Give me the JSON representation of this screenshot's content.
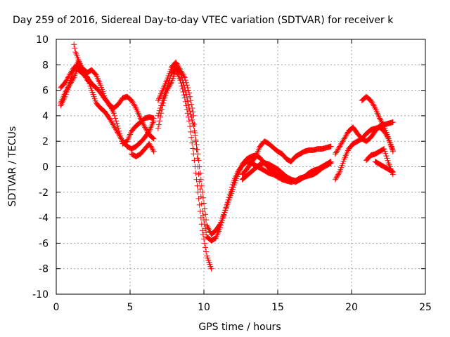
{
  "chart_data": {
    "type": "scatter",
    "title": "Day 259 of 2016, Sidereal Day-to-day VTEC variation (SDTVAR) for receiver k",
    "xlabel": "GPS time / hours",
    "ylabel": "SDTVAR / TECUs",
    "xlim": [
      0,
      25
    ],
    "ylim": [
      -10,
      10
    ],
    "x_ticks": [
      "0",
      "5",
      "10",
      "15",
      "20",
      "25"
    ],
    "y_ticks": [
      "-10",
      "-8",
      "-6",
      "-4",
      "-2",
      "0",
      "2",
      "4",
      "6",
      "8",
      "10"
    ],
    "grid": true,
    "legend": "none",
    "marker": "+",
    "color": "#ff0000",
    "series": [
      {
        "x": [
          0.3,
          0.6,
          0.9,
          1.2,
          1.5,
          1.8,
          2.1,
          2.4,
          2.7,
          3.0,
          3.3,
          3.6,
          3.9,
          4.2,
          4.5,
          4.8,
          5.1,
          5.4,
          5.7,
          6.0,
          6.3,
          6.6
        ],
        "y": [
          6.2,
          6.6,
          7.2,
          7.8,
          7.6,
          7.3,
          7.0,
          6.5,
          6.2,
          5.8,
          5.3,
          4.9,
          4.2,
          3.0,
          1.8,
          2.0,
          2.8,
          3.2,
          3.5,
          3.8,
          3.9,
          3.8
        ]
      },
      {
        "x": [
          0.3,
          0.6,
          0.9,
          1.2,
          1.5,
          1.8,
          2.1,
          2.4,
          2.7,
          3.0,
          3.3,
          3.6,
          3.9,
          4.2,
          4.5,
          4.8,
          5.1,
          5.4,
          5.7,
          6.0,
          6.3,
          6.6
        ],
        "y": [
          5.0,
          5.8,
          6.4,
          7.0,
          7.9,
          7.7,
          7.4,
          7.6,
          7.2,
          6.4,
          5.4,
          4.8,
          4.6,
          4.9,
          5.4,
          5.5,
          5.2,
          4.6,
          3.8,
          3.1,
          2.5,
          2.2
        ]
      },
      {
        "x": [
          0.3,
          0.6,
          0.9,
          1.2,
          1.5,
          1.8,
          2.1,
          2.4,
          2.7,
          3.0,
          3.3,
          3.6,
          3.9,
          4.2,
          4.5,
          4.8,
          5.1,
          5.4,
          5.7,
          6.0,
          6.3,
          6.6
        ],
        "y": [
          4.8,
          5.5,
          6.6,
          7.6,
          8.3,
          7.6,
          7.0,
          6.0,
          5.0,
          4.6,
          4.3,
          3.8,
          3.2,
          2.6,
          2.0,
          1.6,
          1.4,
          1.6,
          1.9,
          2.3,
          2.8,
          3.6
        ]
      },
      {
        "x": [
          1.2,
          1.3,
          1.5,
          1.7,
          1.9,
          2.1,
          2.3
        ],
        "y": [
          9.6,
          9.0,
          8.4,
          7.8,
          7.2,
          6.8,
          6.6
        ]
      },
      {
        "x": [
          5.1,
          5.4,
          5.7,
          6.0,
          6.3,
          6.6
        ],
        "y": [
          1.0,
          0.8,
          1.0,
          1.4,
          1.8,
          1.2
        ]
      },
      {
        "x": [
          6.9,
          7.2,
          7.5,
          7.8,
          8.1,
          8.4,
          8.7,
          9.0,
          9.3,
          9.6,
          9.9,
          10.2,
          10.5,
          10.8,
          11.1,
          11.4,
          11.7,
          12.0,
          12.3,
          12.6,
          12.9,
          13.2,
          13.5,
          13.8,
          14.1,
          14.4,
          14.7,
          15.0,
          15.3,
          15.6,
          15.9,
          16.2,
          16.5,
          16.8,
          17.1,
          17.4,
          17.7,
          18.0,
          18.3,
          18.6
        ],
        "y": [
          4.0,
          5.2,
          6.2,
          7.3,
          7.8,
          7.4,
          6.2,
          4.6,
          3.2,
          1.0,
          -2.0,
          -4.6,
          -5.3,
          -5.0,
          -4.5,
          -3.6,
          -2.6,
          -1.6,
          -0.6,
          0.2,
          0.6,
          0.8,
          0.9,
          0.7,
          0.3,
          -0.1,
          -0.4,
          -0.6,
          -0.7,
          -0.9,
          -1.0,
          -1.1,
          -0.9,
          -0.8,
          -0.5,
          -0.3,
          -0.2,
          -0.1,
          0.1,
          0.3
        ]
      },
      {
        "x": [
          6.9,
          7.2,
          7.5,
          7.8,
          8.1,
          8.4,
          8.7,
          9.0,
          9.3,
          9.6,
          9.9,
          10.2,
          10.5,
          10.8,
          11.1,
          11.4,
          11.7,
          12.0,
          12.3,
          12.6,
          12.9,
          13.2,
          13.5,
          13.8,
          14.1,
          14.4,
          14.7,
          15.0,
          15.3,
          15.6,
          15.9,
          16.2,
          16.5,
          16.8,
          17.1,
          17.4,
          17.7,
          18.0,
          18.3,
          18.6
        ],
        "y": [
          5.2,
          6.0,
          6.8,
          7.8,
          8.2,
          7.6,
          7.0,
          5.8,
          4.0,
          0.0,
          -3.5,
          -5.5,
          -5.8,
          -5.6,
          -4.8,
          -3.6,
          -2.4,
          -1.2,
          -0.4,
          0.1,
          0.4,
          0.3,
          0.1,
          -0.1,
          -0.3,
          -0.5,
          -0.6,
          -0.8,
          -1.0,
          -1.1,
          -1.2,
          -1.1,
          -1.0,
          -0.8,
          -0.6,
          -0.4,
          -0.2,
          0.0,
          0.2,
          0.4
        ]
      },
      {
        "x": [
          6.9,
          7.2,
          7.5,
          7.8,
          8.1,
          8.4,
          8.7,
          9.0,
          9.3,
          9.6,
          9.9,
          10.2,
          10.5
        ],
        "y": [
          3.0,
          4.8,
          6.0,
          6.6,
          7.6,
          6.8,
          5.4,
          3.6,
          1.0,
          -2.0,
          -5.0,
          -7.0,
          -8.0
        ]
      },
      {
        "x": [
          12.6,
          12.9,
          13.2,
          13.5,
          13.8,
          14.1,
          14.4,
          14.7,
          15.0,
          15.3,
          15.6,
          15.9,
          16.2,
          16.5,
          16.8,
          17.1,
          17.4,
          17.7,
          18.0,
          18.3,
          18.6
        ],
        "y": [
          -0.6,
          -0.2,
          0.3,
          0.8,
          1.6,
          2.0,
          1.8,
          1.5,
          1.2,
          1.0,
          0.6,
          0.4,
          0.8,
          1.0,
          1.2,
          1.3,
          1.3,
          1.4,
          1.4,
          1.5,
          1.6
        ]
      },
      {
        "x": [
          12.6,
          12.9,
          13.2,
          13.5,
          13.8,
          14.1,
          14.4,
          14.7,
          15.0,
          15.3,
          15.6,
          15.9,
          16.2,
          16.5,
          16.8,
          17.1,
          17.4,
          17.7,
          18.0,
          18.3,
          18.6
        ],
        "y": [
          -1.0,
          -0.7,
          -0.4,
          -0.1,
          0.2,
          0.3,
          0.2,
          0.0,
          -0.2,
          -0.5,
          -0.8,
          -1.0,
          -1.2,
          -1.0,
          -0.8,
          -0.7,
          -0.6,
          -0.4,
          -0.1,
          0.2,
          0.3
        ]
      },
      {
        "x": [
          18.9,
          19.2,
          19.5,
          19.8,
          20.1,
          20.4,
          20.7,
          21.0,
          21.3,
          21.6,
          21.9,
          22.2,
          22.5,
          22.8
        ],
        "y": [
          1.0,
          1.6,
          2.2,
          2.8,
          3.1,
          2.6,
          2.2,
          2.0,
          2.3,
          2.8,
          3.2,
          3.3,
          3.4,
          3.5
        ]
      },
      {
        "x": [
          18.9,
          19.2,
          19.5,
          19.8,
          20.1,
          20.4,
          20.7,
          21.0,
          21.3,
          21.6,
          21.9,
          22.2,
          22.5,
          22.8
        ],
        "y": [
          -1.0,
          -0.4,
          0.6,
          1.4,
          1.8,
          2.0,
          2.2,
          2.6,
          2.9,
          3.0,
          3.1,
          2.8,
          2.2,
          1.2
        ]
      },
      {
        "x": [
          20.7,
          21.0,
          21.3,
          21.6,
          21.9,
          22.2,
          22.5,
          22.8
        ],
        "y": [
          5.2,
          5.5,
          5.2,
          4.6,
          3.8,
          3.2,
          2.2,
          1.3
        ]
      },
      {
        "x": [
          21.0,
          21.3,
          21.6,
          21.9,
          22.2,
          22.5,
          22.8
        ],
        "y": [
          0.5,
          0.9,
          1.0,
          1.2,
          1.4,
          0.3,
          -0.6
        ]
      },
      {
        "x": [
          21.6,
          21.9,
          22.2,
          22.5,
          22.8
        ],
        "y": [
          0.4,
          0.2,
          0.0,
          -0.2,
          -0.4
        ]
      }
    ]
  }
}
